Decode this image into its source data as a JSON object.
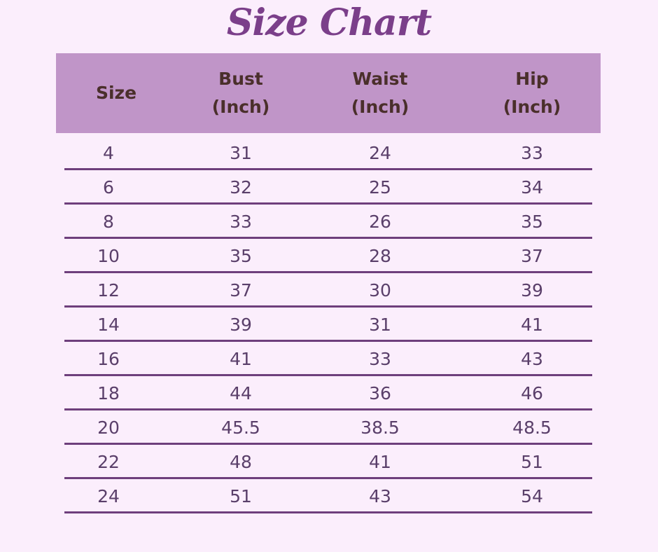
{
  "title": "Size Chart",
  "colors": {
    "background": "#fbeefc",
    "header_bg": "#c095c8",
    "header_text": "#4a2f2b",
    "cell_text": "#5a3f6a",
    "rule": "#6e3f7c",
    "title": "#7b3f8a"
  },
  "table": {
    "headers": [
      "Size",
      "Bust\n(Inch)",
      "Waist\n(Inch)",
      "Hip (Inch)"
    ],
    "rows": [
      [
        "4",
        "31",
        "24",
        "33"
      ],
      [
        "6",
        "32",
        "25",
        "34"
      ],
      [
        "8",
        "33",
        "26",
        "35"
      ],
      [
        "10",
        "35",
        "28",
        "37"
      ],
      [
        "12",
        "37",
        "30",
        "39"
      ],
      [
        "14",
        "39",
        "31",
        "41"
      ],
      [
        "16",
        "41",
        "33",
        "43"
      ],
      [
        "18",
        "44",
        "36",
        "46"
      ],
      [
        "20",
        "45.5",
        "38.5",
        "48.5"
      ],
      [
        "22",
        "48",
        "41",
        "51"
      ],
      [
        "24",
        "51",
        "43",
        "54"
      ]
    ]
  }
}
